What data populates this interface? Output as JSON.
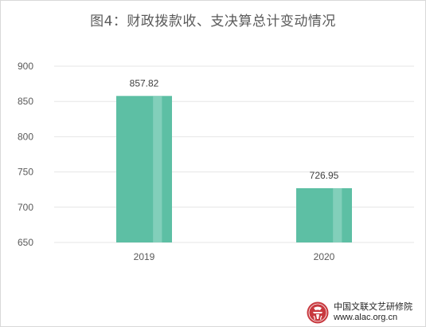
{
  "colors": {
    "bar": "#5dbfa4",
    "bar_highlight": "#8fd4c1",
    "grid": "#e6e6e6",
    "axis_text": "#595959",
    "title": "#5a5a5a",
    "seal": "#c8393f"
  },
  "chart_data": {
    "type": "bar",
    "title": "图4：财政拨款收、支决算总计变动情况",
    "xlabel": "",
    "ylabel": "",
    "categories": [
      "2019",
      "2020"
    ],
    "values": [
      857.82,
      726.95
    ],
    "data_labels": [
      "857.82",
      "726.95"
    ],
    "ylim": [
      650,
      900
    ],
    "yticks": [
      650,
      700,
      750,
      800,
      850,
      900
    ],
    "grid": true,
    "legend": "none"
  },
  "watermark": {
    "org": "中国文联文艺研修院",
    "url": "www.alac.org.cn",
    "seal_icon": "seal-icon"
  }
}
